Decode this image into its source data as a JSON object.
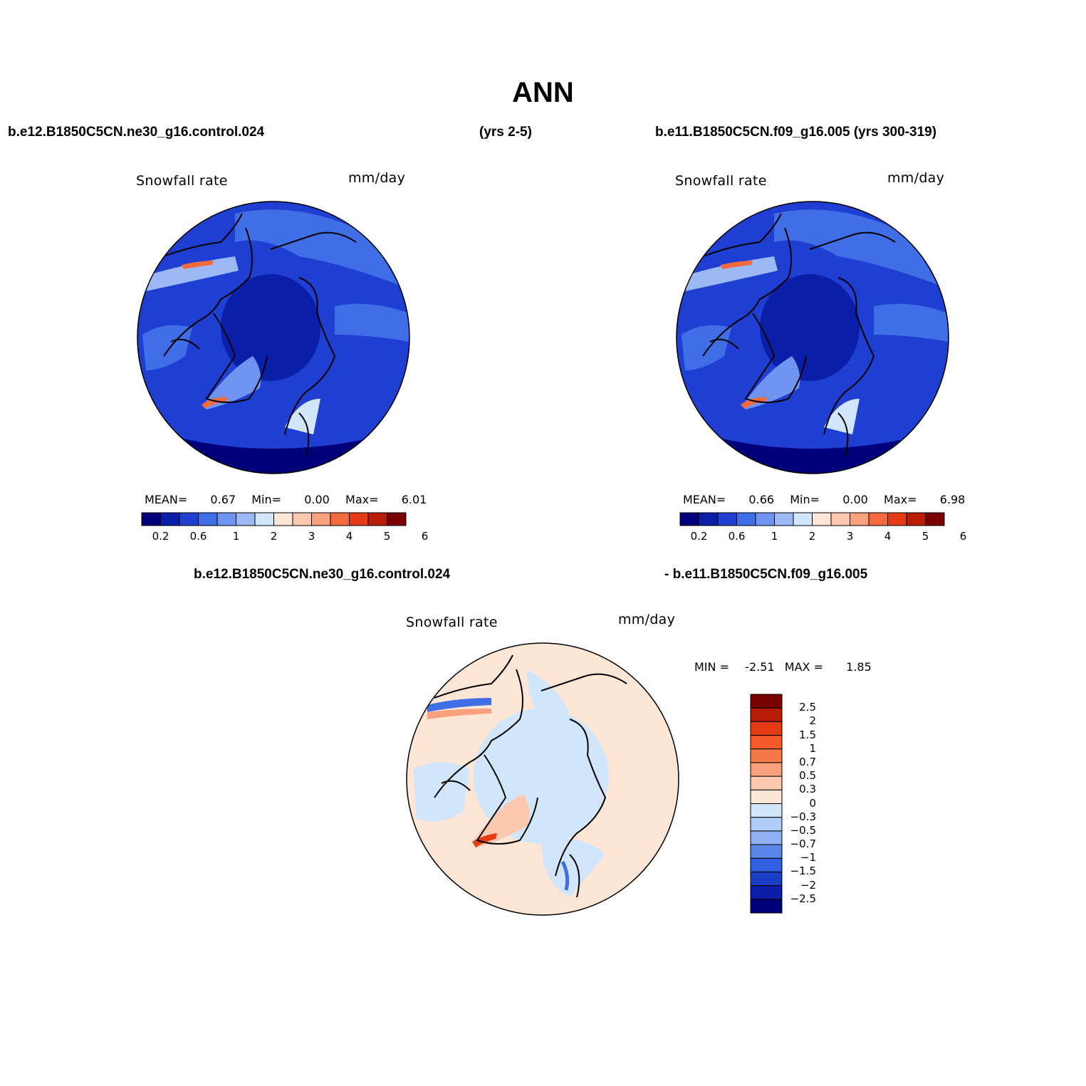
{
  "title": "ANN",
  "header": {
    "case1": "b.e12.B1850C5CN.ne30_g16.control.024",
    "case1_years": "(yrs 2-5)",
    "case2": "b.e11.B1850C5CN.f09_g16.005 (yrs 300-319)"
  },
  "diff_header": {
    "left": "b.e12.B1850C5CN.ne30_g16.control.024",
    "right": "- b.e11.B1850C5CN.f09_g16.005"
  },
  "panels": [
    {
      "variable": "Snowfall rate",
      "units": "mm/day",
      "stats": {
        "mean_label": "MEAN=",
        "mean": "0.67",
        "min_label": "Min=",
        "min": "0.00",
        "max_label": "Max=",
        "max": "6.01"
      },
      "colorbar_ticks": [
        "0.2",
        "0.6",
        "1",
        "2",
        "3",
        "4",
        "5",
        "6"
      ]
    },
    {
      "variable": "Snowfall rate",
      "units": "mm/day",
      "stats": {
        "mean_label": "MEAN=",
        "mean": "0.66",
        "min_label": "Min=",
        "min": "0.00",
        "max_label": "Max=",
        "max": "6.98"
      },
      "colorbar_ticks": [
        "0.2",
        "0.6",
        "1",
        "2",
        "3",
        "4",
        "5",
        "6"
      ]
    }
  ],
  "diff_panel": {
    "variable": "Snowfall rate",
    "units": "mm/day",
    "stats": {
      "min_label": "MIN =",
      "min": "-2.51",
      "max_label": "MAX =",
      "max": "1.85"
    },
    "colorbar_ticks": [
      "2.5",
      "2",
      "1.5",
      "1",
      "0.7",
      "0.5",
      "0.3",
      "0",
      "−0.3",
      "−0.5",
      "−0.7",
      "−1",
      "−1.5",
      "−2",
      "−2.5"
    ]
  },
  "colors": {
    "abs_scale": [
      "#00007a",
      "#0a1ea8",
      "#1e3fd2",
      "#3f6ee6",
      "#6e94f0",
      "#9cb8f5",
      "#d2e6fb",
      "#fde6d6",
      "#fcc8ae",
      "#f9a07c",
      "#f56a3c",
      "#e33c16",
      "#b81c08",
      "#7a0000"
    ],
    "diff_scale": [
      "#7a0000",
      "#b81c08",
      "#e33c16",
      "#f55a28",
      "#f57a48",
      "#f9a07c",
      "#fcc8ae",
      "#fde6d6",
      "#d2e6fb",
      "#b0ccf8",
      "#8eb0f2",
      "#5a86ea",
      "#2f5ee0",
      "#1a3ec4",
      "#0a1ea8",
      "#00007a"
    ],
    "coast": "#000000"
  }
}
